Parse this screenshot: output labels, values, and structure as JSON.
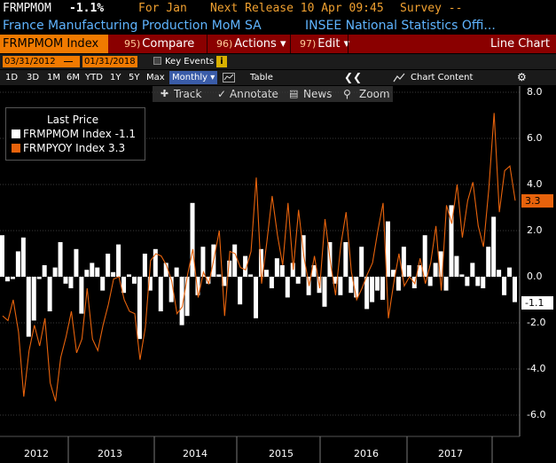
{
  "header": {
    "ticker": "FRMPMOM",
    "change": "-1.1%",
    "for_label": "For Jan",
    "next_release": "Next Release 10 Apr 09:45",
    "survey": "Survey --",
    "description": "France Manufacturing Production MoM SA",
    "source": "INSEE National Statistics Offi..."
  },
  "toolbar": {
    "security": "FRMPMOM Index",
    "compare_num": "95)",
    "compare": "Compare",
    "actions_num": "96)",
    "actions": "Actions",
    "edit_num": "97)",
    "edit": "Edit",
    "chart_type": "Line Chart"
  },
  "dates": {
    "start": "03/31/2012",
    "end": "01/31/2018",
    "key_events": "Key Events"
  },
  "ranges": {
    "items": [
      "1D",
      "3D",
      "1M",
      "6M",
      "YTD",
      "1Y",
      "5Y",
      "Max"
    ],
    "frequency": "Monthly",
    "table": "Table",
    "chart_content": "Chart Content"
  },
  "tools": {
    "track": "Track",
    "annotate": "Annotate",
    "news": "News",
    "zoom": "Zoom"
  },
  "legend": {
    "title": "Last Price",
    "series1": "FRMPMOM Index  -1.1",
    "series2": "FRMPYOY Index    3.3"
  },
  "tags": {
    "mom": "-1.1",
    "yoy": "3.3"
  },
  "colors": {
    "orange": "#f07a00",
    "bar": "#ffffff",
    "line": "#e8630c",
    "header_blue": "#5fb4ff",
    "toolbar_red": "#8a0000"
  },
  "chart_data": {
    "type": "bar",
    "y_ticks": [
      "8.0",
      "6.0",
      "4.0",
      "2.0",
      "0.0",
      "-2.0",
      "-4.0",
      "-6.0"
    ],
    "x_ticks": [
      "2012",
      "2013",
      "2014",
      "2015",
      "2016",
      "2017"
    ],
    "ylim": [
      -6.5,
      8.2
    ],
    "series": [
      {
        "name": "FRMPMOM Index",
        "type": "bar",
        "values": [
          1.8,
          -0.2,
          -0.1,
          1.1,
          1.7,
          -2.6,
          -1.9,
          -0.1,
          0.5,
          -1.5,
          0.4,
          1.5,
          -0.3,
          -0.5,
          1.2,
          -1.6,
          0.3,
          0.6,
          0.4,
          -0.6,
          1.0,
          0.2,
          1.4,
          -0.7,
          0.1,
          -0.3,
          -2.7,
          1.0,
          -0.6,
          1.2,
          -1.5,
          0.6,
          -1.1,
          0.4,
          -2.1,
          -1.7,
          3.2,
          -0.8,
          1.3,
          -0.3,
          1.4,
          0.1,
          -0.4,
          0.7,
          1.4,
          -1.2,
          0.9,
          0.1,
          -1.8,
          1.2,
          0.3,
          -0.5,
          0.8,
          0.5,
          -0.9,
          0.6,
          -0.3,
          1.8,
          -0.8,
          0.5,
          -0.7,
          -1.3,
          1.5,
          -0.3,
          -0.8,
          1.5,
          -0.7,
          -0.9,
          1.3,
          -1.4,
          -1.1,
          -0.6,
          -1.0,
          2.4,
          0.3,
          -0.6,
          1.3,
          0.5,
          -0.5,
          0.5,
          1.8,
          -0.4,
          0.6,
          1.1,
          -0.6,
          3.1,
          0.9,
          0.1,
          -0.4,
          0.6,
          -0.4,
          -0.5,
          1.3,
          2.6,
          0.3,
          -0.8,
          0.4,
          -1.1
        ],
        "color": "#ffffff"
      },
      {
        "name": "FRMPYOY Index",
        "type": "line",
        "values": [
          -1.7,
          -1.9,
          -1.0,
          -2.4,
          -5.2,
          -3.2,
          -2.1,
          -3.0,
          -1.8,
          -4.6,
          -5.4,
          -3.5,
          -2.6,
          -1.5,
          -3.3,
          -2.7,
          -0.5,
          -2.7,
          -3.2,
          -2.1,
          -1.2,
          -0.1,
          0.0,
          -1.0,
          -1.5,
          -1.6,
          -3.6,
          -2.2,
          0.7,
          1.0,
          0.9,
          0.5,
          -0.2,
          -1.6,
          -1.3,
          0.1,
          1.2,
          -0.9,
          0.2,
          -0.3,
          0.8,
          2.0,
          -1.7,
          1.1,
          1.0,
          0.4,
          0.3,
          1.1,
          4.3,
          -0.3,
          1.5,
          3.5,
          1.8,
          0.5,
          3.2,
          0.3,
          2.9,
          0.9,
          -0.4,
          0.9,
          -0.5,
          2.5,
          0.7,
          -0.8,
          1.4,
          2.8,
          0.2,
          -1.0,
          -0.5,
          0.1,
          0.6,
          2.0,
          3.2,
          -1.8,
          -0.3,
          1.0,
          -0.4,
          0.0,
          -0.3,
          0.8,
          -0.3,
          0.6,
          2.2,
          -0.6,
          3.1,
          2.3,
          4.0,
          1.7,
          3.3,
          4.1,
          2.2,
          1.3,
          3.8,
          7.1,
          2.8,
          4.6,
          4.8,
          3.3
        ],
        "color": "#e8630c"
      }
    ]
  }
}
